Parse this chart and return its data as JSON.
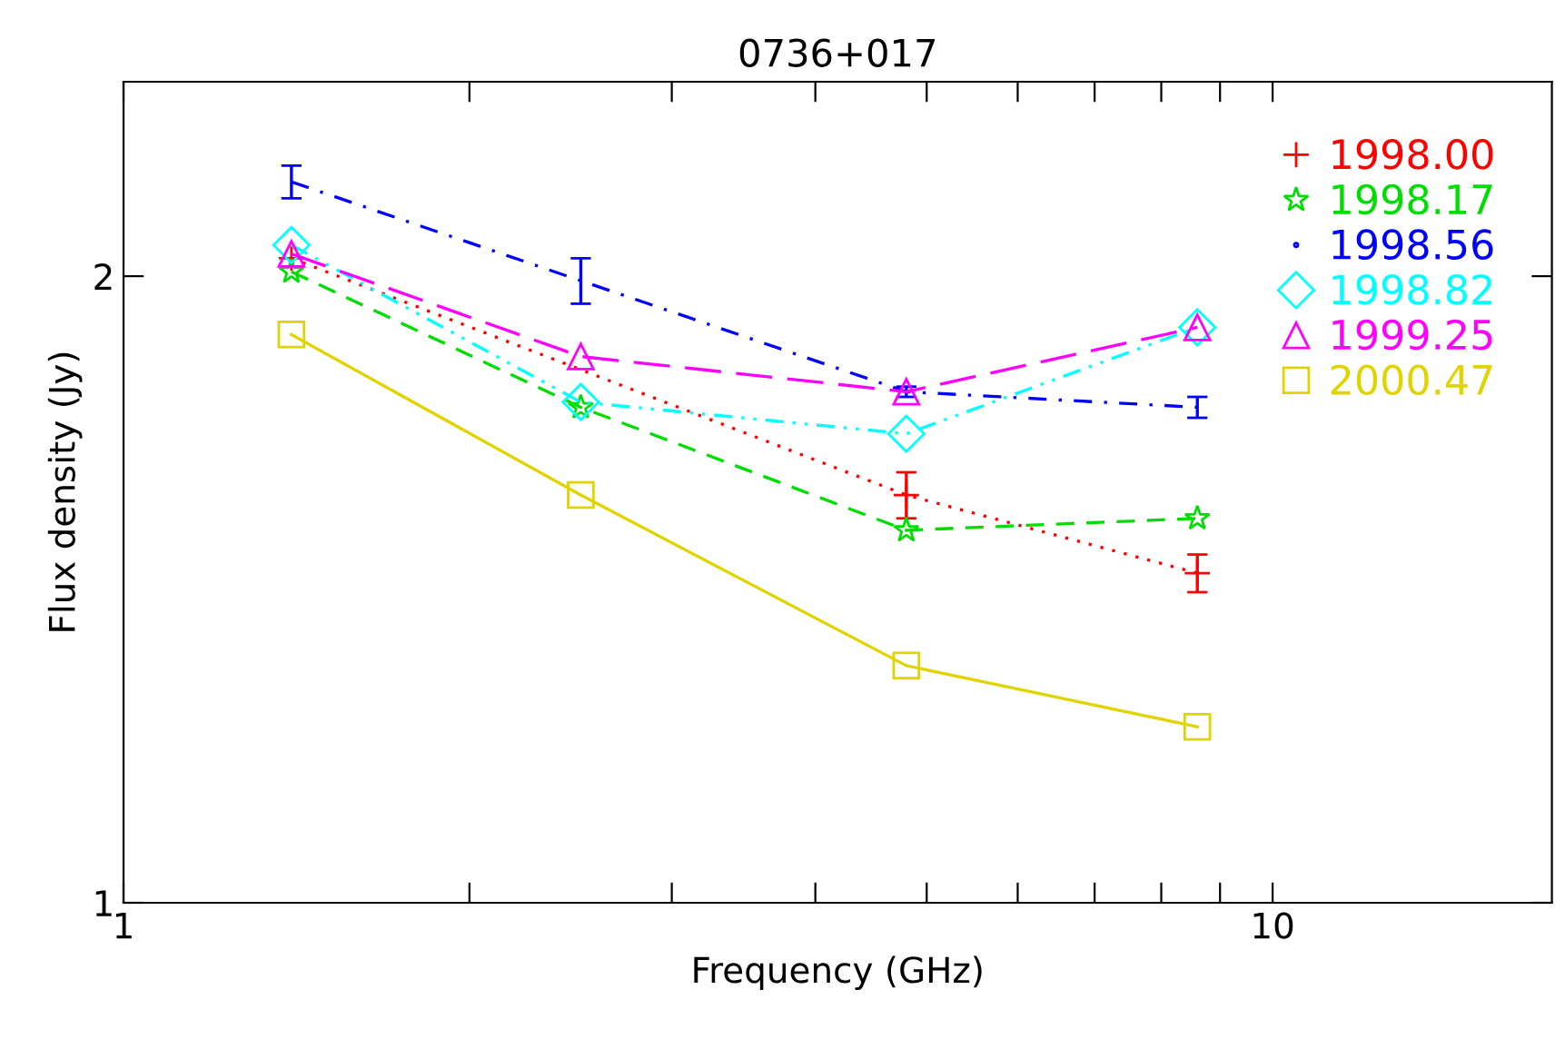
{
  "chart_data": {
    "type": "line",
    "title": "0736+017",
    "xlabel": "Frequency (GHz)",
    "ylabel": "Flux density (Jy)",
    "log": "xy",
    "xlim": [
      1,
      17.5
    ],
    "xticks": [
      1,
      {
        "value": 2,
        "label": null
      },
      {
        "value": 3,
        "label": null
      },
      {
        "value": 4,
        "label": null
      },
      {
        "value": 5,
        "label": null
      },
      {
        "value": 6,
        "label": null
      },
      {
        "value": 7,
        "label": null
      },
      {
        "value": 8,
        "label": null
      },
      {
        "value": 9,
        "label": null
      },
      10
    ],
    "ylim": [
      1,
      2.48
    ],
    "yticks": [
      1,
      2
    ],
    "grid": false,
    "legend": "top right",
    "series": [
      {
        "name": "1998.00",
        "color": "#ff0000",
        "marker": "cross",
        "line_style": "dotted",
        "x": [
          1.4,
          4.8,
          8.6
        ],
        "values": [
          2.04,
          1.57,
          1.44
        ],
        "errors": [
          null,
          0.04,
          0.03
        ]
      },
      {
        "name": "1998.17",
        "color": "#00dd00",
        "marker": "star",
        "line_style": "dashed",
        "x": [
          1.4,
          2.5,
          4.8,
          8.6
        ],
        "values": [
          2.01,
          1.73,
          1.51,
          1.53
        ]
      },
      {
        "name": "1998.56",
        "color": "#0000ff",
        "marker": "none",
        "line_style": "dashdot",
        "x": [
          1.4,
          2.5,
          4.8,
          8.6
        ],
        "values": [
          2.22,
          1.99,
          1.76,
          1.73
        ],
        "errors": [
          0.04,
          0.05,
          0.01,
          0.02
        ]
      },
      {
        "name": "1998.82",
        "color": "#00ffff",
        "marker": "diamond",
        "line_style": "dashdotdot",
        "x": [
          1.4,
          2.5,
          4.8,
          8.6
        ],
        "values": [
          2.07,
          1.74,
          1.68,
          1.89
        ]
      },
      {
        "name": "1999.25",
        "color": "#ff00ff",
        "marker": "triangle",
        "line_style": "longdash",
        "x": [
          1.4,
          2.5,
          4.8,
          8.6
        ],
        "values": [
          2.05,
          1.83,
          1.76,
          1.89
        ]
      },
      {
        "name": "2000.47",
        "color": "#e0d400",
        "marker": "square",
        "line_style": "solid",
        "x": [
          1.4,
          2.5,
          4.8,
          8.6
        ],
        "values": [
          1.875,
          1.57,
          1.3,
          1.215
        ]
      }
    ]
  }
}
